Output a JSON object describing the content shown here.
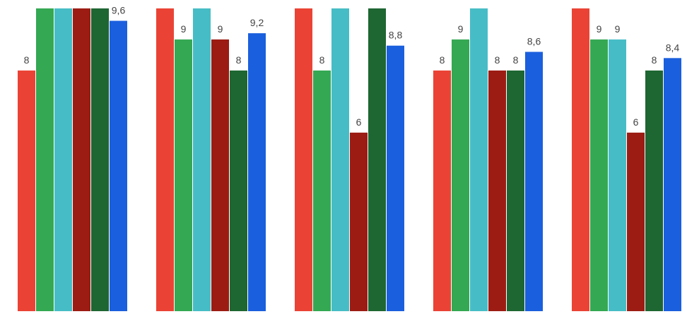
{
  "chart_data": {
    "type": "bar",
    "ylim": [
      0.16,
      10.27
    ],
    "series": [
      {
        "color": "#ea4335",
        "values": [
          8,
          10,
          10,
          8,
          10
        ],
        "value_labels": [
          "8",
          null,
          null,
          "8",
          null
        ]
      },
      {
        "color": "#34a853",
        "values": [
          10,
          9,
          8,
          9,
          9
        ],
        "value_labels": [
          null,
          "9",
          "8",
          "9",
          "9"
        ]
      },
      {
        "color": "#46bdc6",
        "values": [
          10,
          10,
          10,
          10,
          9
        ],
        "value_labels": [
          null,
          null,
          null,
          null,
          "9"
        ]
      },
      {
        "color": "#9c1c14",
        "values": [
          10,
          9,
          6,
          8,
          6
        ],
        "value_labels": [
          null,
          "9",
          "6",
          "8",
          "6"
        ]
      },
      {
        "color": "#1e6632",
        "values": [
          10,
          8,
          10,
          8,
          8
        ],
        "value_labels": [
          null,
          "8",
          null,
          "8",
          "8"
        ]
      },
      {
        "color": "#1a5fde",
        "values": [
          9.6,
          9.2,
          8.8,
          8.6,
          8.4
        ],
        "value_labels": [
          "9,6",
          "9,2",
          "8,8",
          "8,6",
          "8,4"
        ]
      }
    ]
  }
}
